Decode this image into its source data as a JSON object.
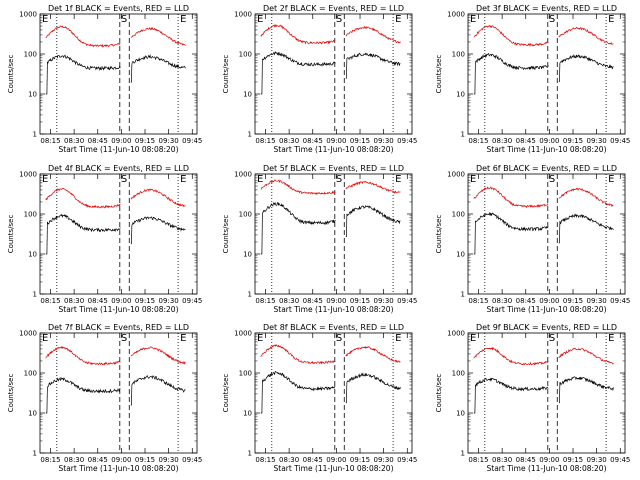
{
  "panels": [
    {
      "title": "Det 1f  BLACK = Events, RED = LLD",
      "base_events": 44,
      "base_lld": 160,
      "peak_events": [
        90,
        85
      ],
      "peak_lld": [
        480,
        430
      ]
    },
    {
      "title": "Det 2f  BLACK = Events, RED = LLD",
      "base_events": 55,
      "base_lld": 190,
      "peak_events": [
        105,
        100
      ],
      "peak_lld": [
        520,
        460
      ]
    },
    {
      "title": "Det 3f  BLACK = Events, RED = LLD",
      "base_events": 45,
      "base_lld": 170,
      "peak_events": [
        95,
        88
      ],
      "peak_lld": [
        500,
        440
      ]
    },
    {
      "title": "Det 4f  BLACK = Events, RED = LLD",
      "base_events": 40,
      "base_lld": 150,
      "peak_events": [
        90,
        80
      ],
      "peak_lld": [
        420,
        400
      ]
    },
    {
      "title": "Det 5f  BLACK = Events, RED = LLD",
      "base_events": 60,
      "base_lld": 330,
      "peak_events": [
        180,
        150
      ],
      "peak_lld": [
        680,
        620
      ]
    },
    {
      "title": "Det 6f  BLACK = Events, RED = LLD",
      "base_events": 42,
      "base_lld": 155,
      "peak_events": [
        100,
        90
      ],
      "peak_lld": [
        450,
        420
      ]
    },
    {
      "title": "Det 7f  BLACK = Events, RED = LLD",
      "base_events": 35,
      "base_lld": 170,
      "peak_events": [
        70,
        80
      ],
      "peak_lld": [
        440,
        430
      ]
    },
    {
      "title": "Det 8f  BLACK = Events, RED = LLD",
      "base_events": 40,
      "base_lld": 180,
      "peak_events": [
        100,
        90
      ],
      "peak_lld": [
        480,
        440
      ]
    },
    {
      "title": "Det 9f  BLACK = Events, RED = LLD",
      "base_events": 40,
      "base_lld": 170,
      "peak_events": [
        70,
        75
      ],
      "peak_lld": [
        420,
        400
      ]
    }
  ],
  "xlabel": "Start Time (11-Jun-10 08:08:20)",
  "ylabel": "Counts/sec",
  "xticks": [
    "08:15",
    "08:30",
    "08:45",
    "09:00",
    "09:15",
    "09:30",
    "09:45"
  ],
  "yticks": [
    "1",
    "10",
    "100",
    "1000"
  ],
  "markers": {
    "e": "E",
    "s": "S"
  },
  "colors": {
    "events": "#000000",
    "lld": "#e00000"
  },
  "chart_data": {
    "type": "line",
    "yscale": "log",
    "ylim": [
      1,
      1000
    ],
    "x_start": "08:08:20",
    "x_end": "09:48",
    "series": [
      {
        "name": "Events",
        "color": "#000000"
      },
      {
        "name": "LLD",
        "color": "#e00000"
      }
    ],
    "dotted_lines": [
      "08:19",
      "09:36"
    ],
    "dashed_lines": [
      "08:59",
      "09:05"
    ]
  }
}
